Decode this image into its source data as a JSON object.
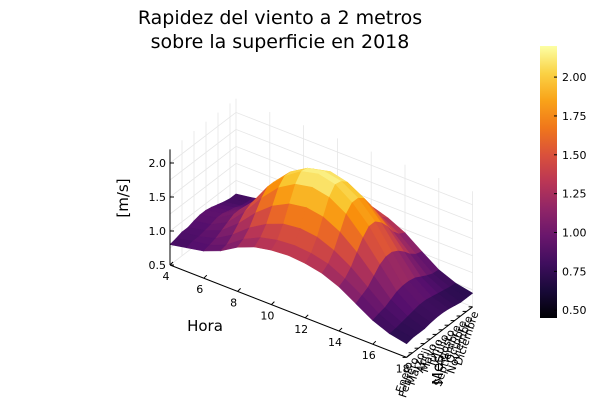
{
  "title_line1": "Rapidez del viento a 2 metros",
  "title_line2": "sobre la superficie en 2018",
  "chart_data": {
    "type": "surface",
    "title": "Rapidez del viento a 2 metros sobre la superficie en 2018",
    "xlabel": "Hora",
    "ylabel": "Mes",
    "zlabel": "[m/s]",
    "x": [
      4,
      5,
      6,
      7,
      8,
      9,
      10,
      11,
      12,
      13,
      14,
      15,
      16,
      17,
      18
    ],
    "x_ticks": [
      4,
      6,
      8,
      10,
      12,
      14,
      16,
      18
    ],
    "months": [
      "Enero",
      "Febrero",
      "Marzo",
      "Abril",
      "Mayo",
      "Junio",
      "Julio",
      "Agosto",
      "Septiembre",
      "Octubre",
      "Noviembre",
      "Diciembre"
    ],
    "z": [
      [
        0.8,
        0.85,
        0.9,
        1.0,
        1.15,
        1.25,
        1.3,
        1.32,
        1.3,
        1.25,
        1.15,
        1.0,
        0.85,
        0.75,
        0.7
      ],
      [
        0.82,
        0.88,
        0.92,
        1.02,
        1.2,
        1.32,
        1.38,
        1.4,
        1.38,
        1.32,
        1.2,
        1.05,
        0.88,
        0.76,
        0.72
      ],
      [
        0.85,
        0.88,
        0.95,
        1.1,
        1.3,
        1.45,
        1.55,
        1.58,
        1.55,
        1.45,
        1.3,
        1.1,
        0.9,
        0.78,
        0.72
      ],
      [
        0.85,
        0.9,
        1.0,
        1.2,
        1.45,
        1.65,
        1.78,
        1.82,
        1.78,
        1.65,
        1.45,
        1.2,
        0.95,
        0.8,
        0.72
      ],
      [
        0.88,
        0.92,
        1.05,
        1.3,
        1.6,
        1.85,
        2.0,
        2.05,
        2.0,
        1.85,
        1.6,
        1.3,
        1.0,
        0.82,
        0.74
      ],
      [
        0.9,
        0.95,
        1.1,
        1.35,
        1.7,
        1.95,
        2.12,
        2.18,
        2.12,
        1.95,
        1.7,
        1.35,
        1.02,
        0.84,
        0.75
      ],
      [
        0.9,
        0.95,
        1.1,
        1.35,
        1.7,
        1.95,
        2.1,
        2.15,
        2.1,
        1.95,
        1.7,
        1.35,
        1.02,
        0.84,
        0.75
      ],
      [
        0.88,
        0.92,
        1.05,
        1.3,
        1.62,
        1.88,
        2.02,
        2.08,
        2.02,
        1.88,
        1.62,
        1.3,
        1.0,
        0.82,
        0.74
      ],
      [
        0.85,
        0.9,
        1.0,
        1.22,
        1.5,
        1.72,
        1.85,
        1.9,
        1.85,
        1.72,
        1.5,
        1.22,
        0.95,
        0.8,
        0.72
      ],
      [
        0.82,
        0.86,
        0.95,
        1.12,
        1.35,
        1.55,
        1.65,
        1.7,
        1.65,
        1.55,
        1.35,
        1.12,
        0.9,
        0.78,
        0.7
      ],
      [
        0.8,
        0.84,
        0.92,
        1.05,
        1.25,
        1.4,
        1.5,
        1.52,
        1.5,
        1.4,
        1.25,
        1.05,
        0.86,
        0.76,
        0.7
      ],
      [
        0.8,
        0.84,
        0.9,
        1.02,
        1.2,
        1.32,
        1.4,
        1.42,
        1.4,
        1.32,
        1.2,
        1.02,
        0.85,
        0.75,
        0.7
      ]
    ],
    "zlim": [
      0.45,
      2.2
    ],
    "z_ticks": [
      0.5,
      1.0,
      1.5,
      2.0
    ],
    "colorbar": {
      "range": [
        0.45,
        2.2
      ],
      "ticks": [
        0.5,
        0.75,
        1.0,
        1.25,
        1.5,
        1.75,
        2.0
      ],
      "tick_labels": [
        "0.50",
        "0.75",
        "1.00",
        "1.25",
        "1.50",
        "1.75",
        "2.00"
      ],
      "colormap": "inferno"
    },
    "grid": true,
    "legend": "none"
  }
}
